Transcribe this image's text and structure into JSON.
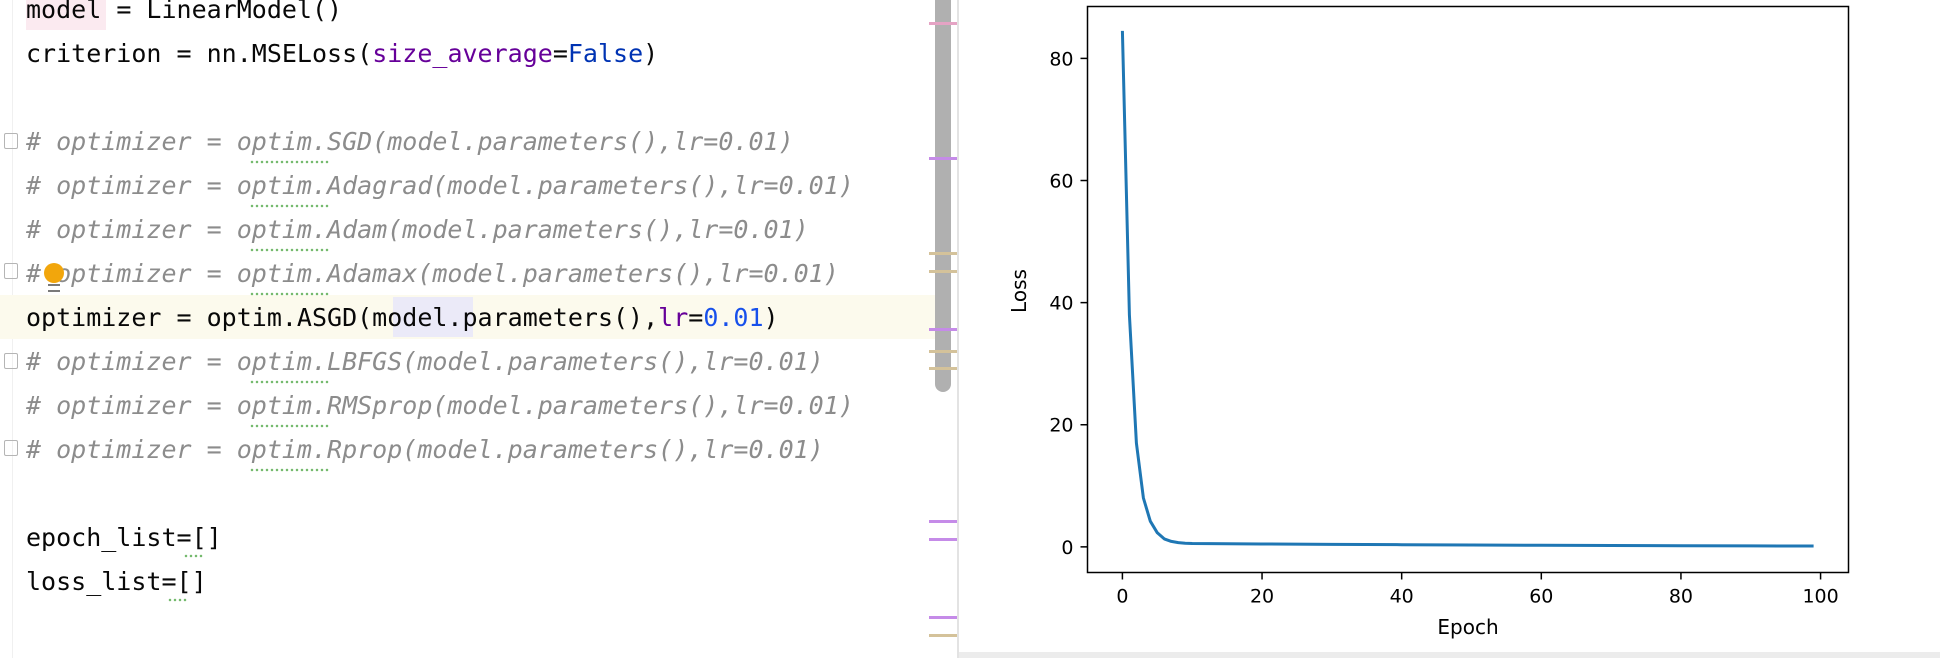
{
  "editor": {
    "lines": [
      {
        "id": "l0",
        "segments": [
          {
            "t": "model",
            "c": "plain"
          },
          {
            "t": " = LinearModel()",
            "c": "plain"
          }
        ]
      },
      {
        "id": "l1",
        "segments": [
          {
            "t": "criterion = nn.MSELoss(",
            "c": "plain"
          },
          {
            "t": "size_average",
            "c": "param"
          },
          {
            "t": "=",
            "c": "plain"
          },
          {
            "t": "False",
            "c": "kw"
          },
          {
            "t": ")",
            "c": "plain"
          }
        ]
      },
      {
        "id": "l2",
        "segments": []
      },
      {
        "id": "l3",
        "segments": [
          {
            "t": "# optimizer = optim.SGD(model.parameters(),lr=0.01)",
            "c": "comment"
          }
        ]
      },
      {
        "id": "l4",
        "segments": [
          {
            "t": "# optimizer = optim.Adagrad(model.parameters(),lr=0.01)",
            "c": "comment"
          }
        ]
      },
      {
        "id": "l5",
        "segments": [
          {
            "t": "# optimizer = optim.Adam(model.parameters(),lr=0.01)",
            "c": "comment"
          }
        ]
      },
      {
        "id": "l6",
        "segments": [
          {
            "t": "# optimizer = optim.Adamax(model.parameters(),lr=0.01)",
            "c": "comment"
          }
        ]
      },
      {
        "id": "l7",
        "segments": [
          {
            "t": "optimizer = optim.ASGD(model.parameters(),",
            "c": "plain"
          },
          {
            "t": "lr",
            "c": "param"
          },
          {
            "t": "=",
            "c": "plain"
          },
          {
            "t": "0.01",
            "c": "num"
          },
          {
            "t": ")",
            "c": "plain"
          }
        ]
      },
      {
        "id": "l8",
        "segments": [
          {
            "t": "# optimizer = optim.LBFGS(model.parameters(),lr=0.01)",
            "c": "comment"
          }
        ]
      },
      {
        "id": "l9",
        "segments": [
          {
            "t": "# optimizer = optim.RMSprop(model.parameters(),lr=0.01)",
            "c": "comment"
          }
        ]
      },
      {
        "id": "l10",
        "segments": [
          {
            "t": "# optimizer = optim.Rprop(model.parameters(),lr=0.01)",
            "c": "comment"
          }
        ]
      },
      {
        "id": "l11",
        "segments": []
      },
      {
        "id": "l12",
        "segments": [
          {
            "t": "epoch_list=[]",
            "c": "plain"
          }
        ]
      },
      {
        "id": "l13",
        "segments": [
          {
            "t": "loss_list=[]",
            "c": "plain"
          }
        ]
      }
    ]
  },
  "colors": {
    "comment": "#8c8c8c",
    "param": "#660099",
    "kw": "#0033b3",
    "num": "#1750eb",
    "plain": "#080808",
    "line": "#1f77b4",
    "marker_purple": "#c58be8",
    "marker_tan": "#d4c29a",
    "marker_pink": "#e5a3c4"
  },
  "chart_data": {
    "type": "line",
    "title": "",
    "xlabel": "Epoch",
    "ylabel": "Loss",
    "xlim": [
      -5,
      104
    ],
    "ylim": [
      -4.2,
      88.5
    ],
    "xticks": [
      0,
      20,
      40,
      60,
      80,
      100
    ],
    "yticks": [
      0,
      20,
      40,
      60,
      80
    ],
    "grid": false,
    "series": [
      {
        "x": [
          0,
          1,
          2,
          3,
          4,
          5,
          6,
          7,
          8,
          9,
          10,
          15,
          20,
          30,
          40,
          50,
          60,
          70,
          80,
          90,
          99
        ],
        "y": [
          84.5,
          38,
          17,
          8,
          4.2,
          2.3,
          1.3,
          0.9,
          0.7,
          0.6,
          0.55,
          0.5,
          0.46,
          0.4,
          0.35,
          0.3,
          0.26,
          0.22,
          0.19,
          0.16,
          0.14
        ]
      }
    ]
  }
}
